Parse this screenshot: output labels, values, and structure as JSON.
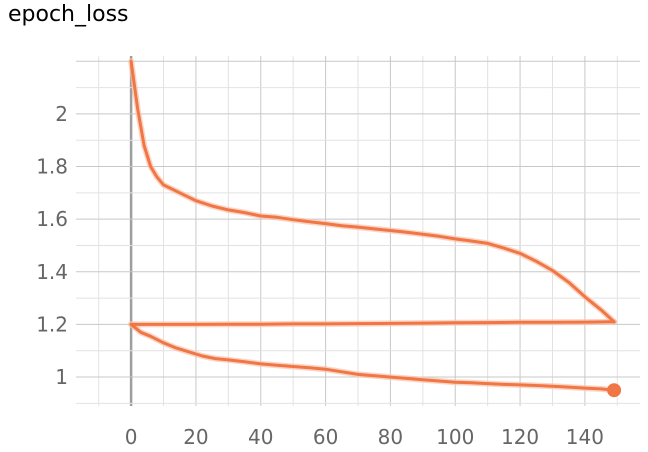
{
  "card": {
    "title": "epoch_loss"
  },
  "chart_data": {
    "type": "line",
    "title": "epoch_loss",
    "xlabel": "",
    "ylabel": "",
    "xlim": [
      -17,
      157
    ],
    "ylim": [
      0.89,
      2.22
    ],
    "x_ticks": [
      0,
      20,
      40,
      60,
      80,
      100,
      120,
      140
    ],
    "x_tick_labels": [
      "0",
      "20",
      "40",
      "60",
      "80",
      "100",
      "120",
      "140"
    ],
    "y_ticks": [
      1.0,
      1.2,
      1.4,
      1.6,
      1.8,
      2.0
    ],
    "y_tick_labels": [
      "1",
      "1.2",
      "1.4",
      "1.6",
      "1.8",
      "2"
    ],
    "grid": true,
    "color": "#f07646",
    "raw_color": "#f9c3ab",
    "series": [
      {
        "x": [
          0,
          2,
          4,
          6,
          8,
          10,
          15,
          20,
          25,
          30,
          35,
          40,
          45,
          50,
          55,
          60,
          65,
          70,
          75,
          80,
          85,
          90,
          95,
          100,
          105,
          110,
          115,
          120,
          125,
          130,
          135,
          140,
          145,
          149
        ],
        "values": [
          2.2,
          2.02,
          1.88,
          1.8,
          1.76,
          1.73,
          1.7,
          1.67,
          1.65,
          1.635,
          1.625,
          1.612,
          1.607,
          1.598,
          1.59,
          1.583,
          1.575,
          1.57,
          1.563,
          1.557,
          1.55,
          1.543,
          1.535,
          1.525,
          1.517,
          1.508,
          1.49,
          1.47,
          1.44,
          1.405,
          1.36,
          1.305,
          1.255,
          1.21
        ]
      },
      {
        "x": [
          0,
          10,
          20,
          30,
          40,
          50,
          60,
          70,
          80,
          90,
          100,
          110,
          120,
          130,
          140,
          149
        ],
        "values": [
          1.2,
          1.2,
          1.2,
          1.201,
          1.201,
          1.202,
          1.202,
          1.203,
          1.204,
          1.205,
          1.206,
          1.207,
          1.208,
          1.208,
          1.209,
          1.21
        ]
      },
      {
        "x": [
          0,
          3,
          6,
          10,
          14,
          18,
          22,
          26,
          30,
          35,
          40,
          45,
          50,
          55,
          60,
          65,
          70,
          75,
          80,
          85,
          90,
          95,
          100,
          105,
          110,
          115,
          120,
          125,
          130,
          135,
          140,
          145,
          149
        ],
        "values": [
          1.2,
          1.17,
          1.155,
          1.13,
          1.11,
          1.095,
          1.08,
          1.07,
          1.065,
          1.058,
          1.05,
          1.045,
          1.04,
          1.035,
          1.03,
          1.02,
          1.01,
          1.005,
          1.0,
          0.995,
          0.99,
          0.985,
          0.98,
          0.978,
          0.975,
          0.972,
          0.97,
          0.968,
          0.965,
          0.962,
          0.958,
          0.955,
          0.95
        ]
      }
    ]
  }
}
